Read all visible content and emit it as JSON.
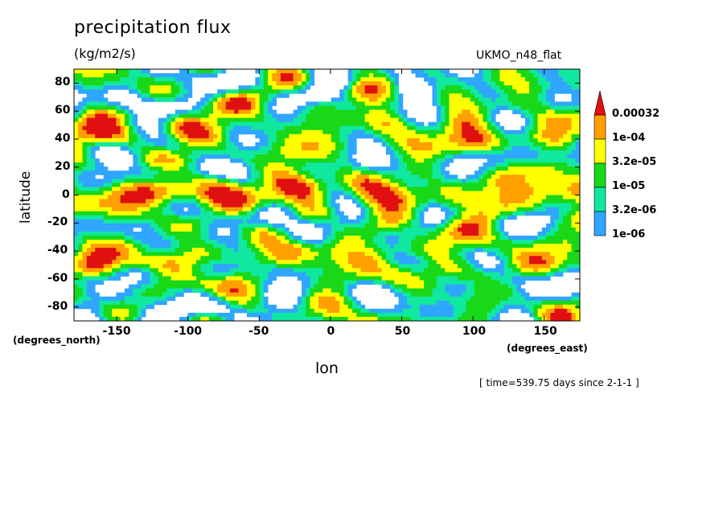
{
  "chart_data": {
    "type": "heatmap",
    "title": "precipitation flux",
    "units": "(kg/m2/s)",
    "model_label": "UKMO_n48_flat",
    "xlabel": "lon",
    "ylabel": "latitude",
    "x_units": "(degrees_east)",
    "y_units": "(degrees_north)",
    "x_ticks": [
      -150,
      -100,
      -50,
      0,
      50,
      100,
      150
    ],
    "y_ticks": [
      80,
      60,
      40,
      20,
      0,
      -20,
      -40,
      -60,
      -80
    ],
    "xlim": [
      -180,
      175
    ],
    "ylim": [
      -90,
      90
    ],
    "colorbar": {
      "levels": [
        "1e-06",
        "3.2e-06",
        "1e-05",
        "3.2e-05",
        "1e-04",
        "0.00032"
      ],
      "colors": [
        "#ffffff",
        "#2fa6ff",
        "#10e8a0",
        "#18d818",
        "#ffff00",
        "#ffa000",
        "#e01010"
      ]
    },
    "timestamp": "[ time=539.75 days since 2-1-1 ]"
  }
}
